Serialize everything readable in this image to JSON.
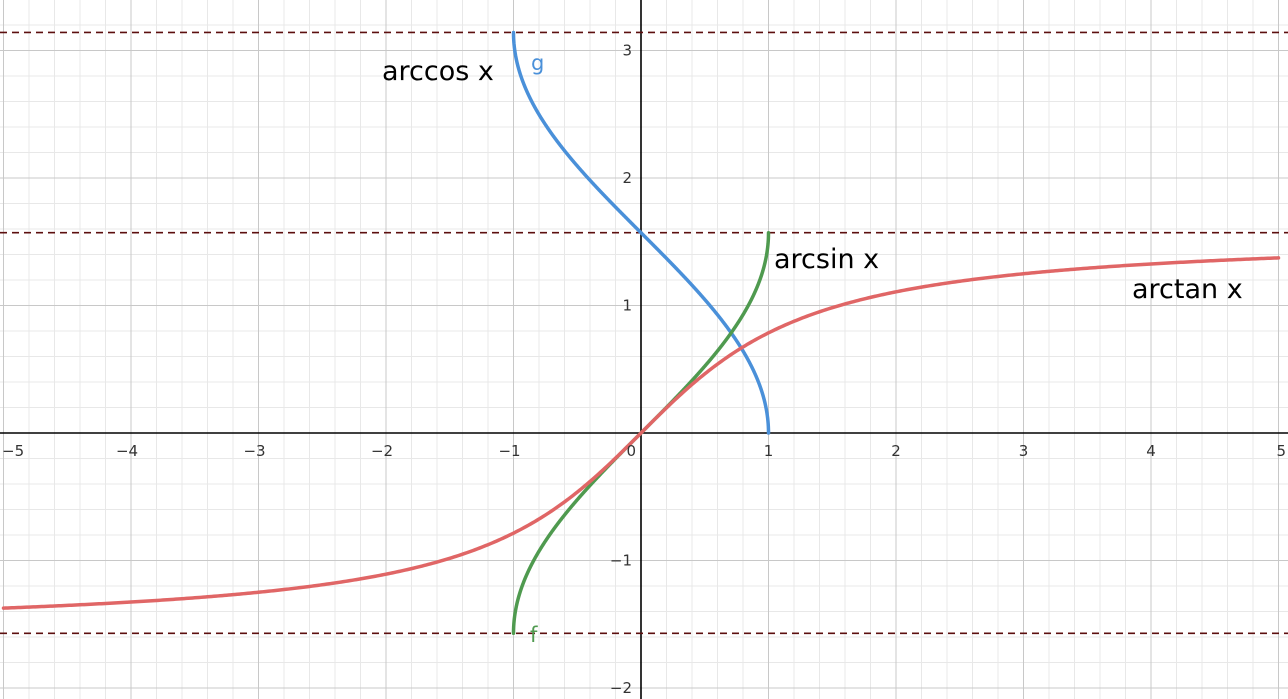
{
  "chart_data": {
    "type": "line",
    "title": "",
    "xlabel": "",
    "ylabel": "",
    "xlim": [
      -5,
      5
    ],
    "ylim": [
      -2.05,
      3.35
    ],
    "grid": true,
    "x_ticks": [
      -5,
      -4,
      -3,
      -2,
      -1,
      0,
      1,
      2,
      3,
      4,
      5
    ],
    "y_ticks": [
      -2,
      -1,
      1,
      2,
      3
    ],
    "x_tick_labels": [
      "−5",
      "−4",
      "−3",
      "−2",
      "−1",
      "0",
      "1",
      "2",
      "3",
      "4",
      "5"
    ],
    "y_tick_labels": [
      "−2",
      "−1",
      "1",
      "2",
      "3"
    ],
    "series": [
      {
        "name": "arccos x",
        "tag": "g",
        "function": "arccos",
        "domain": [
          -1,
          1
        ],
        "color": "#4a90d9",
        "x": [
          -1,
          -0.75,
          -0.5,
          -0.25,
          0,
          0.25,
          0.5,
          0.75,
          1
        ],
        "y": [
          3.142,
          2.419,
          2.094,
          1.823,
          1.571,
          1.318,
          1.047,
          0.723,
          0
        ]
      },
      {
        "name": "arcsin x",
        "tag": "f",
        "function": "arcsin",
        "domain": [
          -1,
          1
        ],
        "color": "#4f9a4f",
        "x": [
          -1,
          -0.75,
          -0.5,
          -0.25,
          0,
          0.25,
          0.5,
          0.75,
          1
        ],
        "y": [
          -1.571,
          -0.848,
          -0.524,
          -0.253,
          0,
          0.253,
          0.524,
          0.848,
          1.571
        ]
      },
      {
        "name": "arctan x",
        "tag": "",
        "function": "arctan",
        "domain": [
          -5,
          5
        ],
        "color": "#e06666",
        "x": [
          -5,
          -4,
          -3,
          -2,
          -1,
          0,
          1,
          2,
          3,
          4,
          5
        ],
        "y": [
          -1.373,
          -1.326,
          -1.249,
          -1.107,
          -0.785,
          0,
          0.785,
          1.107,
          1.249,
          1.326,
          1.373
        ]
      }
    ],
    "asymptotes": [
      {
        "y": 3.14159,
        "color": "#5c0f0f"
      },
      {
        "y": 1.5708,
        "color": "#5c0f0f"
      },
      {
        "y": -1.5708,
        "color": "#5c0f0f"
      }
    ]
  }
}
